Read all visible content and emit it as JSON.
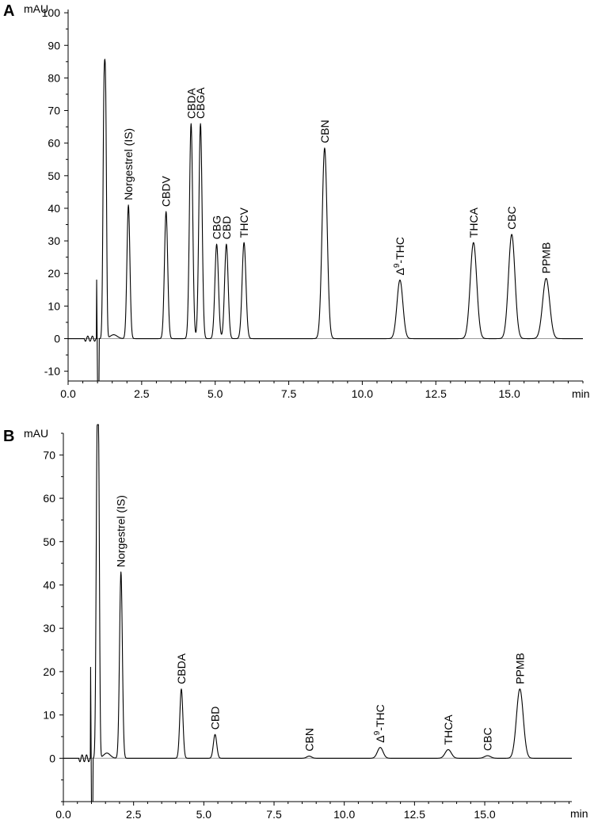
{
  "chart_data": [
    {
      "type": "line",
      "panel": "A",
      "ylabel": "mAU",
      "xlabel": "min",
      "xlim": [
        0,
        17.5
      ],
      "ylim": [
        -13,
        101
      ],
      "x_ticks": [
        0.0,
        2.5,
        5.0,
        7.5,
        10.0,
        12.5,
        15.0
      ],
      "x_tick_labels": [
        "0.0",
        "2.5",
        "5.0",
        "7.5",
        "10.0",
        "12.5",
        "15.0"
      ],
      "y_ticks": [
        -10,
        0,
        10,
        20,
        30,
        40,
        50,
        60,
        70,
        80,
        90,
        100
      ],
      "y_tick_labels": [
        "-10",
        "0",
        "10",
        "20",
        "30",
        "40",
        "50",
        "60",
        "70",
        "80",
        "90",
        "100"
      ],
      "solvent_front": [
        {
          "x": 0.97,
          "y": 18
        },
        {
          "x": 1.0,
          "y": -13
        },
        {
          "x": 1.22,
          "y": 72
        }
      ],
      "peaks": [
        {
          "label": "Norgestrel (IS)",
          "rt": 2.05,
          "height": 41,
          "width": 0.05
        },
        {
          "label": "CBDV",
          "rt": 3.33,
          "height": 39,
          "width": 0.055
        },
        {
          "label": "CBDA",
          "rt": 4.18,
          "height": 66,
          "width": 0.055
        },
        {
          "label": "CBGA",
          "rt": 4.5,
          "height": 66,
          "width": 0.055
        },
        {
          "label": "CBG",
          "rt": 5.05,
          "height": 29,
          "width": 0.06
        },
        {
          "label": "CBD",
          "rt": 5.38,
          "height": 29,
          "width": 0.06
        },
        {
          "label": "THCV",
          "rt": 5.98,
          "height": 29.5,
          "width": 0.065
        },
        {
          "label": "CBN",
          "rt": 8.72,
          "height": 58.5,
          "width": 0.085
        },
        {
          "label": "Δ9-THC",
          "rt": 11.28,
          "height": 18,
          "width": 0.1
        },
        {
          "label": "THCA",
          "rt": 13.78,
          "height": 29.5,
          "width": 0.11
        },
        {
          "label": "CBC",
          "rt": 15.08,
          "height": 32,
          "width": 0.11
        },
        {
          "label": "PPMB",
          "rt": 16.25,
          "height": 18.5,
          "width": 0.12
        }
      ]
    },
    {
      "type": "line",
      "panel": "B",
      "ylabel": "mAU",
      "xlabel": "min",
      "xlim": [
        0,
        18.1
      ],
      "ylim": [
        -10,
        75
      ],
      "x_ticks": [
        0.0,
        2.5,
        5.0,
        7.5,
        10.0,
        12.5,
        15.0
      ],
      "x_tick_labels": [
        "0.0",
        "2.5",
        "5.0",
        "7.5",
        "10.0",
        "12.5",
        "15.0"
      ],
      "y_ticks": [
        0,
        10,
        20,
        30,
        40,
        50,
        60,
        70
      ],
      "y_tick_labels": [
        "0",
        "10",
        "20",
        "30",
        "40",
        "50",
        "60",
        "70"
      ],
      "solvent_front": [
        {
          "x": 0.97,
          "y": 21
        },
        {
          "x": 1.0,
          "y": -10
        },
        {
          "x": 1.2,
          "y": 69
        }
      ],
      "peaks": [
        {
          "label": "Norgestrel (IS)",
          "rt": 2.05,
          "height": 43,
          "width": 0.05
        },
        {
          "label": "CBDA",
          "rt": 4.2,
          "height": 16,
          "width": 0.055
        },
        {
          "label": "CBD",
          "rt": 5.4,
          "height": 5.5,
          "width": 0.06
        },
        {
          "label": "CBN",
          "rt": 8.75,
          "height": 0.5,
          "width": 0.085
        },
        {
          "label": "Δ9-THC",
          "rt": 11.28,
          "height": 2.5,
          "width": 0.1
        },
        {
          "label": "THCA",
          "rt": 13.7,
          "height": 2.0,
          "width": 0.11
        },
        {
          "label": "CBC",
          "rt": 15.1,
          "height": 0.6,
          "width": 0.11
        },
        {
          "label": "PPMB",
          "rt": 16.25,
          "height": 16,
          "width": 0.12
        }
      ]
    }
  ]
}
